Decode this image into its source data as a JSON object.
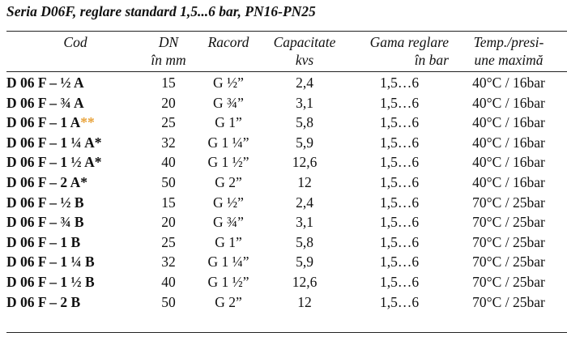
{
  "title": "Seria D06F, reglare standard 1,5...6 bar, PN16-PN25",
  "headers": {
    "cod": [
      "Cod",
      ""
    ],
    "dn": [
      "DN",
      "în mm"
    ],
    "racord": [
      "Racord",
      ""
    ],
    "capacitate": [
      "Capacitate",
      "kvs"
    ],
    "gama": [
      "Gama reglare",
      "în bar"
    ],
    "temp": [
      "Temp./presi-",
      "une maximă"
    ]
  },
  "rows": [
    {
      "cod": "D 06 F – ½ A",
      "mark": "",
      "dn": "15",
      "racord": "G ½”",
      "cap": "2,4",
      "gama": "1,5…6",
      "temp": "40°C / 16bar"
    },
    {
      "cod": "D 06 F – ¾ A",
      "mark": "",
      "dn": "20",
      "racord": "G ¾”",
      "cap": "3,1",
      "gama": "1,5…6",
      "temp": "40°C / 16bar"
    },
    {
      "cod": "D 06 F – 1 A",
      "mark": "**",
      "dn": "25",
      "racord": "G 1”",
      "cap": "5,8",
      "gama": "1,5…6",
      "temp": "40°C / 16bar"
    },
    {
      "cod": "D 06 F – 1 ¼ A*",
      "mark": "",
      "dn": "32",
      "racord": "G 1 ¼”",
      "cap": "5,9",
      "gama": "1,5…6",
      "temp": "40°C / 16bar"
    },
    {
      "cod": "D 06 F – 1 ½ A*",
      "mark": "",
      "dn": "40",
      "racord": "G 1 ½”",
      "cap": "12,6",
      "gama": "1,5…6",
      "temp": "40°C / 16bar"
    },
    {
      "cod": "D 06 F – 2 A*",
      "mark": "",
      "dn": "50",
      "racord": "G 2”",
      "cap": "12",
      "gama": "1,5…6",
      "temp": "40°C / 16bar"
    },
    {
      "cod": "D 06 F – ½ B",
      "mark": "",
      "dn": "15",
      "racord": "G ½”",
      "cap": "2,4",
      "gama": "1,5…6",
      "temp": "70°C / 25bar"
    },
    {
      "cod": "D 06 F – ¾ B",
      "mark": "",
      "dn": "20",
      "racord": "G ¾”",
      "cap": "3,1",
      "gama": "1,5…6",
      "temp": "70°C / 25bar"
    },
    {
      "cod": "D 06 F – 1 B",
      "mark": "",
      "dn": "25",
      "racord": "G 1”",
      "cap": "5,8",
      "gama": "1,5…6",
      "temp": "70°C / 25bar"
    },
    {
      "cod": "D 06 F – 1 ¼ B",
      "mark": "",
      "dn": "32",
      "racord": "G 1 ¼”",
      "cap": "5,9",
      "gama": "1,5…6",
      "temp": "70°C / 25bar"
    },
    {
      "cod": "D 06 F – 1 ½ B",
      "mark": "",
      "dn": "40",
      "racord": "G 1 ½”",
      "cap": "12,6",
      "gama": "1,5…6",
      "temp": "70°C / 25bar"
    },
    {
      "cod": "D 06 F – 2 B",
      "mark": "",
      "dn": "50",
      "racord": "G 2”",
      "cap": "12",
      "gama": "1,5…6",
      "temp": "70°C / 25bar"
    }
  ],
  "colors": {
    "text": "#111111",
    "rule": "#222222",
    "asterisk_highlight": "#e8a33c"
  }
}
